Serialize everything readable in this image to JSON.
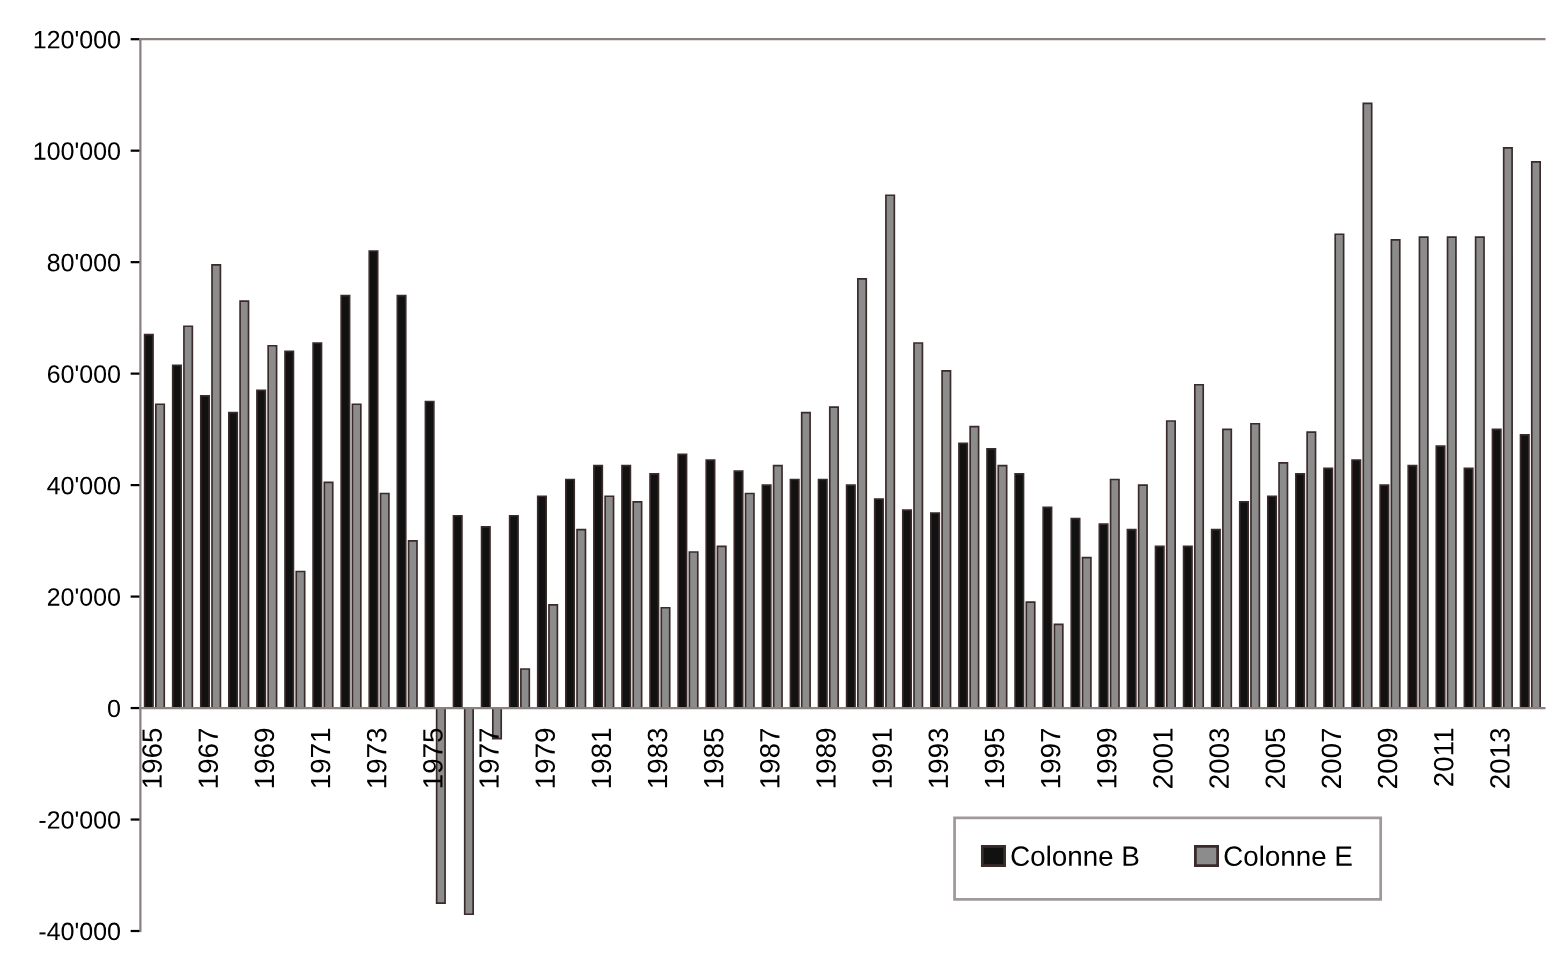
{
  "chart_data": {
    "type": "bar",
    "categories": [
      "1965",
      null,
      "1967",
      null,
      "1969",
      null,
      "1971",
      null,
      "1973",
      null,
      "1975",
      null,
      "1977",
      null,
      "1979",
      null,
      "1981",
      null,
      "1983",
      null,
      "1985",
      null,
      "1987",
      null,
      "1989",
      null,
      "1991",
      null,
      "1993",
      null,
      "1995",
      null,
      "1997",
      null,
      "1999",
      null,
      "2001",
      null,
      "2003",
      null,
      "2005",
      null,
      "2007",
      null,
      "2009",
      null,
      "2011",
      null,
      "2013",
      null
    ],
    "series": [
      {
        "name": "Colonne B",
        "color": "#111111",
        "values": [
          67000,
          61500,
          56000,
          53000,
          57000,
          64000,
          65500,
          74000,
          82000,
          74000,
          55000,
          34500,
          32500,
          34500,
          38000,
          41000,
          43500,
          43500,
          42000,
          45500,
          44500,
          42500,
          40000,
          41000,
          41000,
          40000,
          37500,
          35500,
          35000,
          47500,
          46500,
          42000,
          36000,
          34000,
          33000,
          32000,
          29000,
          29000,
          32000,
          37000,
          38000,
          42000,
          43000,
          44500,
          40000,
          43500,
          47000,
          43000,
          50000,
          49000
        ]
      },
      {
        "name": "Colonne E",
        "color": "#8c8c8c",
        "values": [
          54500,
          68500,
          79500,
          73000,
          65000,
          24500,
          40500,
          54500,
          38500,
          30000,
          -35000,
          -37000,
          -5500,
          7000,
          18500,
          32000,
          38000,
          37000,
          18000,
          28000,
          29000,
          38500,
          43500,
          53000,
          54000,
          77000,
          92000,
          65500,
          60500,
          50500,
          43500,
          19000,
          15000,
          27000,
          41000,
          40000,
          51500,
          58000,
          50000,
          51000,
          44000,
          49500,
          85000,
          108500,
          84000,
          84500,
          84500,
          84500,
          100500,
          98000
        ]
      }
    ],
    "ylim": [
      -40000,
      120000
    ],
    "yticks": [
      {
        "value": -40000,
        "label": "-40'000"
      },
      {
        "value": -20000,
        "label": "-20'000"
      },
      {
        "value": 0,
        "label": "0"
      },
      {
        "value": 20000,
        "label": "20'000"
      },
      {
        "value": 40000,
        "label": "40'000"
      },
      {
        "value": 60000,
        "label": "60'000"
      },
      {
        "value": 80000,
        "label": "80'000"
      },
      {
        "value": 100000,
        "label": "100'000"
      },
      {
        "value": 120000,
        "label": "120'000"
      }
    ],
    "grid": false,
    "legend": "bottom right"
  }
}
